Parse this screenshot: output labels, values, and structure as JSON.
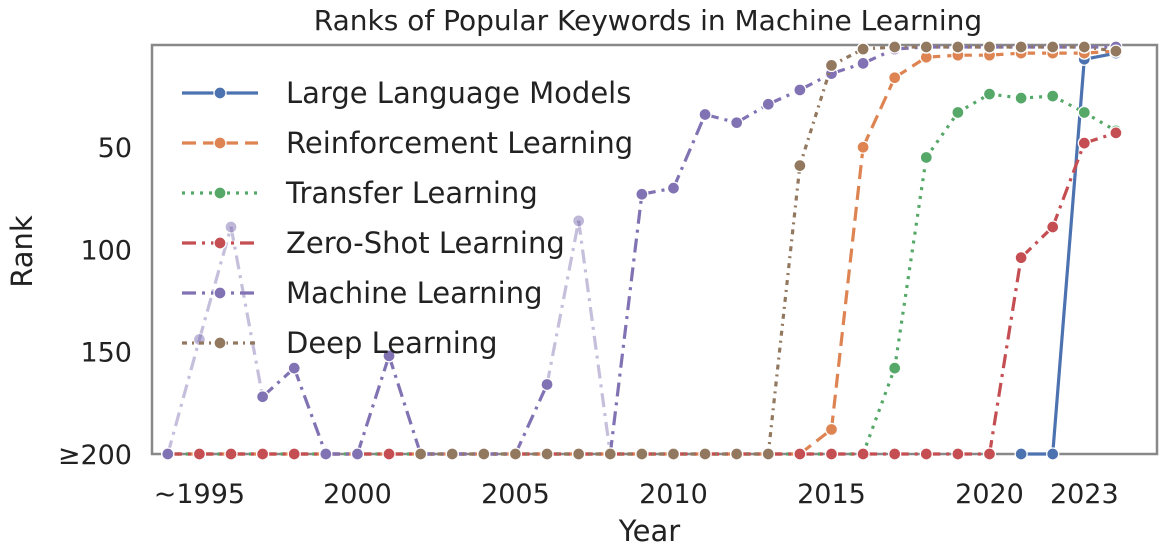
{
  "chart_data": {
    "type": "line",
    "title": "Ranks of Popular Keywords in Machine Learning",
    "xlabel": "Year",
    "ylabel": "Rank",
    "xlim": [
      1993.5,
      2025.3
    ],
    "ylim": [
      200,
      1
    ],
    "y_inverted": true,
    "x_ticks": [
      {
        "value": 1995,
        "label": "∼1995"
      },
      {
        "value": 2000,
        "label": "2000"
      },
      {
        "value": 2005,
        "label": "2005"
      },
      {
        "value": 2010,
        "label": "2010"
      },
      {
        "value": 2015,
        "label": "2015"
      },
      {
        "value": 2020,
        "label": "2020"
      },
      {
        "value": 2023,
        "label": "2023"
      }
    ],
    "y_ticks": [
      {
        "value": 50,
        "label": "50"
      },
      {
        "value": 100,
        "label": "100"
      },
      {
        "value": 150,
        "label": "150"
      },
      {
        "value": 200,
        "label": "≥200"
      }
    ],
    "grid": false,
    "legend_position": "upper-left",
    "series": [
      {
        "name": "Large Language Models",
        "color": "#4c72b0",
        "dash": "solid",
        "x": [
          2021,
          2022,
          2023,
          2024
        ],
        "y": [
          200,
          200,
          7,
          4
        ]
      },
      {
        "name": "Reinforcement Learning",
        "color": "#dd8452",
        "dash": "dashed",
        "x": [
          1994,
          1995,
          1996,
          1997,
          1998,
          1999,
          2000,
          2001,
          2002,
          2003,
          2004,
          2005,
          2006,
          2007,
          2008,
          2009,
          2010,
          2011,
          2012,
          2013,
          2014,
          2015,
          2016,
          2017,
          2018,
          2019,
          2020,
          2021,
          2022,
          2023,
          2024
        ],
        "y": [
          200,
          200,
          200,
          200,
          200,
          200,
          200,
          200,
          200,
          200,
          200,
          200,
          200,
          200,
          200,
          200,
          200,
          200,
          200,
          200,
          200,
          188,
          50,
          16,
          6,
          5,
          5,
          4,
          4,
          4,
          3
        ]
      },
      {
        "name": "Transfer Learning",
        "color": "#55a868",
        "dash": "dotted",
        "x": [
          1994,
          1995,
          1996,
          1997,
          1998,
          1999,
          2000,
          2001,
          2002,
          2003,
          2004,
          2005,
          2006,
          2007,
          2008,
          2009,
          2010,
          2011,
          2012,
          2013,
          2014,
          2015,
          2016,
          2017,
          2018,
          2019,
          2020,
          2021,
          2022,
          2023,
          2024
        ],
        "y": [
          200,
          200,
          200,
          200,
          200,
          200,
          200,
          200,
          200,
          200,
          200,
          200,
          200,
          200,
          200,
          200,
          200,
          200,
          200,
          200,
          200,
          200,
          200,
          158,
          55,
          33,
          24,
          26,
          25,
          33,
          42
        ]
      },
      {
        "name": "Zero-Shot Learning",
        "color": "#c44e52",
        "dash": "dashdot",
        "x": [
          1994,
          1995,
          1996,
          1997,
          1998,
          1999,
          2000,
          2001,
          2002,
          2003,
          2004,
          2005,
          2006,
          2007,
          2008,
          2009,
          2010,
          2011,
          2012,
          2013,
          2014,
          2015,
          2016,
          2017,
          2018,
          2019,
          2020,
          2021,
          2022,
          2023,
          2024
        ],
        "y": [
          200,
          200,
          200,
          200,
          200,
          200,
          200,
          200,
          200,
          200,
          200,
          200,
          200,
          200,
          200,
          200,
          200,
          200,
          200,
          200,
          200,
          200,
          200,
          200,
          200,
          200,
          200,
          104,
          89,
          48,
          43
        ]
      },
      {
        "name": "Machine Learning",
        "color": "#8172b3",
        "dash": "dashdot",
        "x": [
          1994,
          1995,
          1996,
          1997,
          1998,
          1999,
          2000,
          2001,
          2002,
          2003,
          2004,
          2005,
          2006,
          2007,
          2008,
          2009,
          2010,
          2011,
          2012,
          2013,
          2014,
          2015,
          2016,
          2017,
          2018,
          2019,
          2020,
          2021,
          2022,
          2023,
          2024
        ],
        "y": [
          200,
          144,
          89,
          172,
          158,
          200,
          200,
          152,
          200,
          200,
          200,
          200,
          166,
          86,
          200,
          73,
          70,
          34,
          38,
          29,
          22,
          14,
          9,
          2,
          1,
          1,
          1,
          1,
          1,
          1,
          1
        ]
      },
      {
        "name": "Deep Learning",
        "color": "#937860",
        "dash": "densely-dotted-dashdot",
        "x": [
          2002,
          2003,
          2004,
          2005,
          2006,
          2007,
          2008,
          2009,
          2010,
          2011,
          2012,
          2013,
          2014,
          2015,
          2016,
          2017,
          2018,
          2019,
          2020,
          2021,
          2022,
          2023,
          2024
        ],
        "y": [
          200,
          200,
          200,
          200,
          200,
          200,
          200,
          200,
          200,
          200,
          200,
          200,
          59,
          10,
          2,
          1,
          1,
          1,
          1,
          1,
          1,
          1,
          3
        ]
      }
    ],
    "faded_segments": [
      {
        "series": "Machine Learning",
        "x": [
          1994,
          1995,
          1996,
          1997
        ],
        "note": ""
      },
      {
        "series": "Machine Learning",
        "x": [
          2006,
          2007,
          2008
        ],
        "note": ""
      }
    ]
  }
}
